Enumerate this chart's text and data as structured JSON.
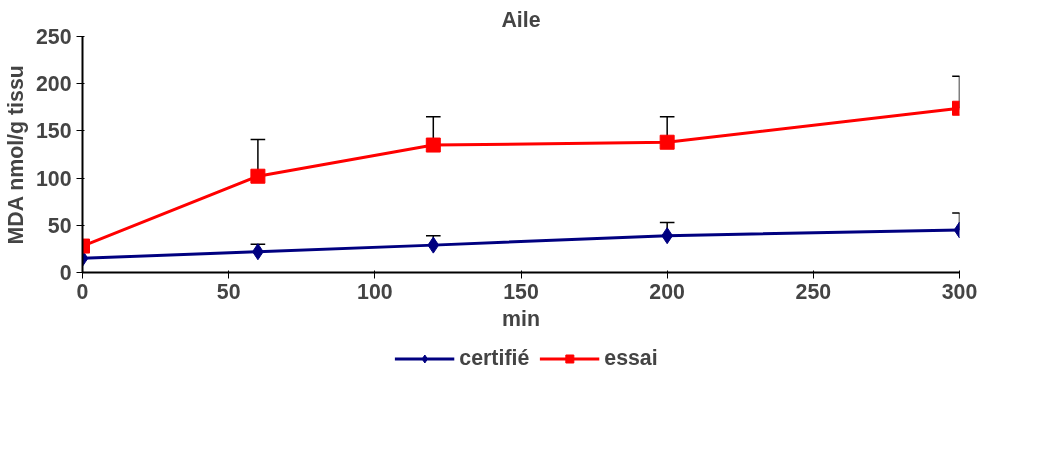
{
  "chart_data": {
    "type": "line",
    "title": "Aile",
    "xlabel": "min",
    "ylabel": "MDA nmol/g tissu",
    "x": [
      0,
      60,
      120,
      200,
      300
    ],
    "series": [
      {
        "name": "certifié",
        "color": "#000080",
        "marker": "diamond",
        "values": [
          15,
          22,
          29,
          39,
          45
        ],
        "errors": [
          null,
          [
            22,
            30
          ],
          [
            29,
            39
          ],
          [
            39,
            53
          ],
          [
            45,
            63
          ]
        ]
      },
      {
        "name": "essai",
        "color": "#ff0000",
        "marker": "square",
        "values": [
          28,
          102,
          135,
          138,
          174
        ],
        "errors": [
          null,
          [
            102,
            141
          ],
          [
            135,
            165
          ],
          [
            138,
            165
          ],
          [
            174,
            208
          ]
        ]
      }
    ],
    "xlim": [
      0,
      300
    ],
    "xticks": [
      0,
      50,
      100,
      150,
      200,
      250,
      300
    ],
    "ylim": [
      0,
      250
    ],
    "yticks": [
      0,
      50,
      100,
      150,
      200,
      250
    ],
    "grid": false,
    "legend": "bottom",
    "line_style": "solid"
  }
}
